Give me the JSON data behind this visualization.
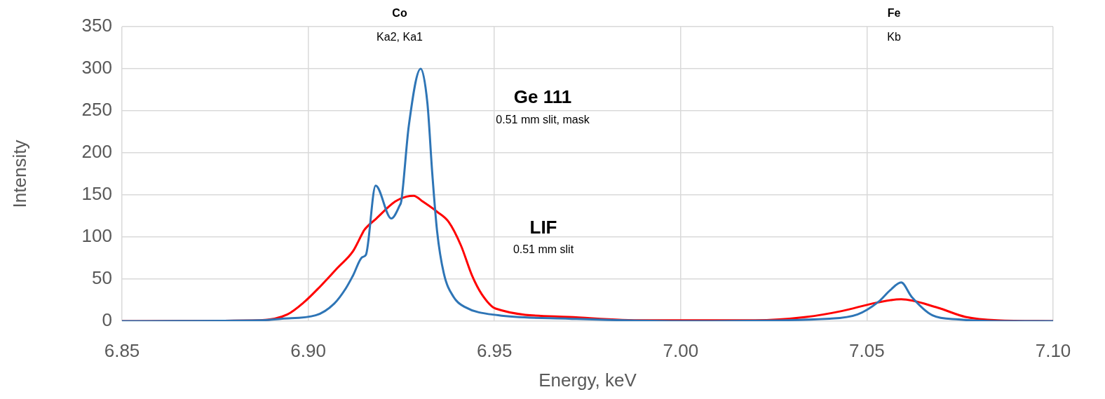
{
  "chart_data": {
    "type": "line",
    "xlabel": "Energy, keV",
    "ylabel": "Intensity",
    "xlim": [
      6.85,
      7.1
    ],
    "xticks": [
      {
        "value": 6.85,
        "label": "6.85"
      },
      {
        "value": 6.9,
        "label": "6.90"
      },
      {
        "value": 6.95,
        "label": "6.95"
      },
      {
        "value": 7.0,
        "label": "7.00"
      },
      {
        "value": 7.05,
        "label": "7.05"
      },
      {
        "value": 7.1,
        "label": "7.10"
      }
    ],
    "ylim": [
      0,
      350
    ],
    "yticks": [
      0,
      50,
      100,
      150,
      200,
      250,
      300,
      350
    ],
    "grid": true,
    "legend": false,
    "marker": "none",
    "line_style": "solid",
    "series": [
      {
        "color": "#2e75b6",
        "x": [
          6.85,
          6.887,
          6.893,
          6.902,
          6.907,
          6.9101,
          6.912,
          6.9145,
          6.9155,
          6.9181,
          6.9223,
          6.9245,
          6.925,
          6.927,
          6.9302,
          6.932,
          6.9333,
          6.9346,
          6.9364,
          6.939,
          6.942,
          6.951,
          6.97,
          7.0,
          7.04,
          7.0475,
          7.0531,
          7.0563,
          7.0592,
          7.062,
          7.0676,
          7.0746,
          7.085,
          7.1
        ],
        "values": [
          0,
          1,
          3,
          7,
          21,
          39,
          54,
          76,
          79,
          161,
          122,
          137,
          143,
          232,
          300,
          259,
          176,
          107,
          57,
          29,
          17,
          7,
          3,
          0,
          3,
          8,
          23,
          37,
          46,
          29,
          7,
          2,
          0,
          0
        ]
      },
      {
        "color": "#ff0000",
        "x": [
          6.85,
          6.887,
          6.8944,
          6.899,
          6.9025,
          6.908,
          6.912,
          6.9145,
          6.915,
          6.9183,
          6.9233,
          6.9264,
          6.9283,
          6.9308,
          6.9346,
          6.9377,
          6.941,
          6.944,
          6.9466,
          6.9503,
          6.97,
          6.99,
          7.02,
          7.0337,
          7.0432,
          7.0526,
          7.0592,
          7.069,
          7.0765,
          7.085,
          7.1
        ],
        "values": [
          0,
          1,
          8,
          23,
          38,
          64,
          83,
          104,
          108,
          122,
          142,
          148,
          149,
          142,
          130,
          118,
          90,
          54,
          32,
          15,
          5,
          1,
          1,
          5,
          12,
          22,
          26,
          16,
          5,
          1,
          0
        ]
      }
    ],
    "annotations": [
      "Co",
      "Ka2, Ka1",
      "Fe",
      "Kb",
      "Ge 111",
      "0.51 mm slit, mask",
      "LIF",
      "0.51 mm slit"
    ]
  }
}
